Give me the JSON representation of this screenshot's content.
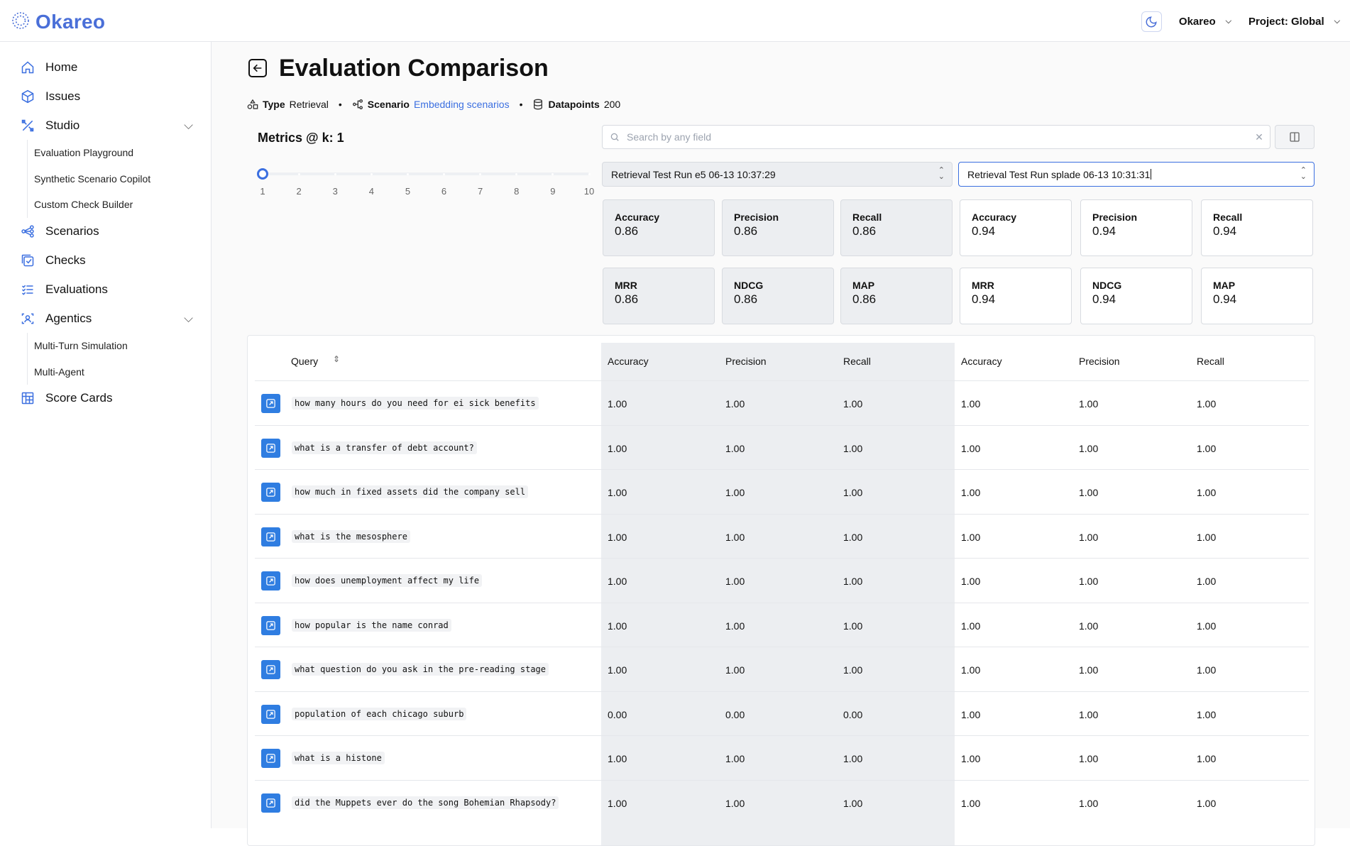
{
  "app": {
    "logo_text": "Okareo",
    "user_label": "Okareo",
    "project_label": "Project: Global",
    "brand_color": "#4a6fd8"
  },
  "sidebar": {
    "items": [
      {
        "label": "Home",
        "icon": "home-icon"
      },
      {
        "label": "Issues",
        "icon": "cube-icon"
      },
      {
        "label": "Studio",
        "icon": "tools-icon",
        "expanded": true
      },
      {
        "label": "Scenarios",
        "icon": "scenarios-icon"
      },
      {
        "label": "Checks",
        "icon": "checks-icon"
      },
      {
        "label": "Evaluations",
        "icon": "list-icon"
      },
      {
        "label": "Agentics",
        "icon": "agent-icon",
        "expanded": true
      },
      {
        "label": "Score Cards",
        "icon": "table-icon"
      }
    ],
    "studio_children": [
      "Evaluation Playground",
      "Synthetic Scenario Copilot",
      "Custom Check Builder"
    ],
    "agentics_children": [
      "Multi-Turn Simulation",
      "Multi-Agent"
    ]
  },
  "page": {
    "title": "Evaluation Comparison",
    "type_label": "Type",
    "type_value": "Retrieval",
    "scenario_label": "Scenario",
    "scenario_value": "Embedding scenarios",
    "datapoints_label": "Datapoints",
    "datapoints_value": "200"
  },
  "metrics": {
    "label": "Metrics @ k: 1",
    "k_value": 1,
    "k_ticks": [
      "1",
      "2",
      "3",
      "4",
      "5",
      "6",
      "7",
      "8",
      "9",
      "10"
    ]
  },
  "search": {
    "placeholder": "Search by any field",
    "value": ""
  },
  "runs": {
    "a": {
      "name": "Retrieval Test Run e5 06-13 10:37:29",
      "cards": [
        {
          "label": "Accuracy",
          "value": "0.86"
        },
        {
          "label": "Precision",
          "value": "0.86"
        },
        {
          "label": "Recall",
          "value": "0.86"
        },
        {
          "label": "MRR",
          "value": "0.86"
        },
        {
          "label": "NDCG",
          "value": "0.86"
        },
        {
          "label": "MAP",
          "value": "0.86"
        }
      ]
    },
    "b": {
      "name": "Retrieval Test Run splade 06-13 10:31:31",
      "cards": [
        {
          "label": "Accuracy",
          "value": "0.94"
        },
        {
          "label": "Precision",
          "value": "0.94"
        },
        {
          "label": "Recall",
          "value": "0.94"
        },
        {
          "label": "MRR",
          "value": "0.94"
        },
        {
          "label": "NDCG",
          "value": "0.94"
        },
        {
          "label": "MAP",
          "value": "0.94"
        }
      ]
    }
  },
  "table": {
    "query_header": "Query",
    "columns": [
      "Accuracy",
      "Precision",
      "Recall",
      "Accuracy",
      "Precision",
      "Recall"
    ],
    "rows": [
      {
        "query": "how many hours do you need for ei sick benefits",
        "values": [
          "1.00",
          "1.00",
          "1.00",
          "1.00",
          "1.00",
          "1.00"
        ]
      },
      {
        "query": "what is a transfer of debt account?",
        "values": [
          "1.00",
          "1.00",
          "1.00",
          "1.00",
          "1.00",
          "1.00"
        ]
      },
      {
        "query": "how much in fixed assets did the company sell",
        "values": [
          "1.00",
          "1.00",
          "1.00",
          "1.00",
          "1.00",
          "1.00"
        ]
      },
      {
        "query": "what is the mesosphere",
        "values": [
          "1.00",
          "1.00",
          "1.00",
          "1.00",
          "1.00",
          "1.00"
        ]
      },
      {
        "query": "how does unemployment affect my life",
        "values": [
          "1.00",
          "1.00",
          "1.00",
          "1.00",
          "1.00",
          "1.00"
        ]
      },
      {
        "query": "how popular is the name conrad",
        "values": [
          "1.00",
          "1.00",
          "1.00",
          "1.00",
          "1.00",
          "1.00"
        ]
      },
      {
        "query": "what question do you ask in the pre-reading stage",
        "values": [
          "1.00",
          "1.00",
          "1.00",
          "1.00",
          "1.00",
          "1.00"
        ]
      },
      {
        "query": "population of each chicago suburb",
        "values": [
          "0.00",
          "0.00",
          "0.00",
          "1.00",
          "1.00",
          "1.00"
        ]
      },
      {
        "query": "what is a histone",
        "values": [
          "1.00",
          "1.00",
          "1.00",
          "1.00",
          "1.00",
          "1.00"
        ]
      },
      {
        "query": "did the Muppets ever do the song Bohemian Rhapsody?",
        "values": [
          "1.00",
          "1.00",
          "1.00",
          "1.00",
          "1.00",
          "1.00"
        ]
      }
    ]
  }
}
